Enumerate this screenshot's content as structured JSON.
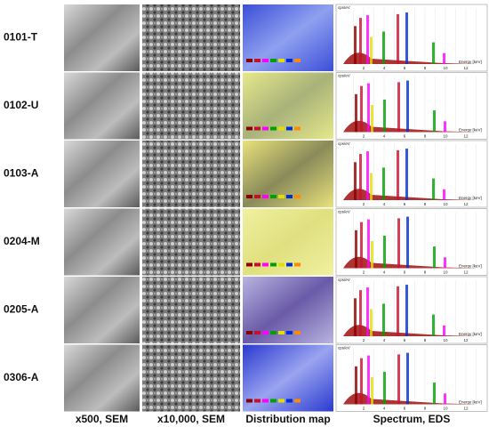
{
  "figure": {
    "rows": [
      {
        "label": "0101-T"
      },
      {
        "label": "0102-U"
      },
      {
        "label": "0103-A"
      },
      {
        "label": "0204-M"
      },
      {
        "label": "0205-A"
      },
      {
        "label": "0306-A"
      }
    ],
    "columns": [
      "x500, SEM",
      "x10,000, SEM",
      "Distribution map",
      "Spectrum, EDS"
    ],
    "spectrum": {
      "y_label": "cps/eV",
      "x_label": "Energy [keV]",
      "x_ticks": [
        "2",
        "4",
        "6",
        "8",
        "10",
        "12"
      ]
    }
  }
}
